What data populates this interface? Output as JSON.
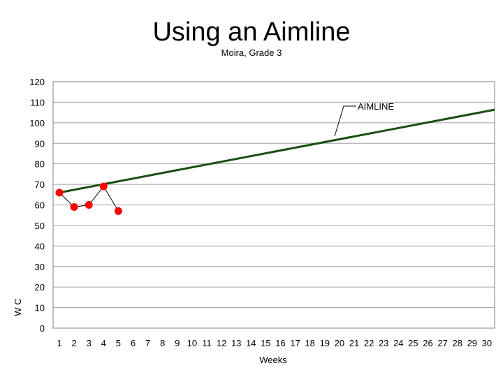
{
  "slide": {
    "title": "Using an Aimline"
  },
  "chart_data": {
    "type": "line",
    "title": "Moira, Grade 3",
    "xlabel": "Weeks",
    "ylabel": "W C",
    "xlim": [
      1,
      30
    ],
    "ylim": [
      0,
      120
    ],
    "x_ticks": [
      1,
      2,
      3,
      4,
      5,
      6,
      7,
      8,
      9,
      10,
      11,
      12,
      13,
      14,
      15,
      16,
      17,
      18,
      19,
      20,
      21,
      22,
      23,
      24,
      25,
      26,
      27,
      28,
      29,
      30
    ],
    "y_ticks": [
      0,
      10,
      20,
      30,
      40,
      50,
      60,
      70,
      80,
      90,
      100,
      110,
      120
    ],
    "grid": "horizontal",
    "series": [
      {
        "name": "",
        "color": "#ff0000",
        "x": [
          1,
          2,
          3,
          4,
          5
        ],
        "y": [
          66,
          59,
          60,
          69,
          57
        ]
      }
    ],
    "aimline": {
      "label": "AIMLINE",
      "color": "#1a4d12",
      "x": [
        1,
        31
      ],
      "y": [
        66,
        107
      ]
    }
  }
}
